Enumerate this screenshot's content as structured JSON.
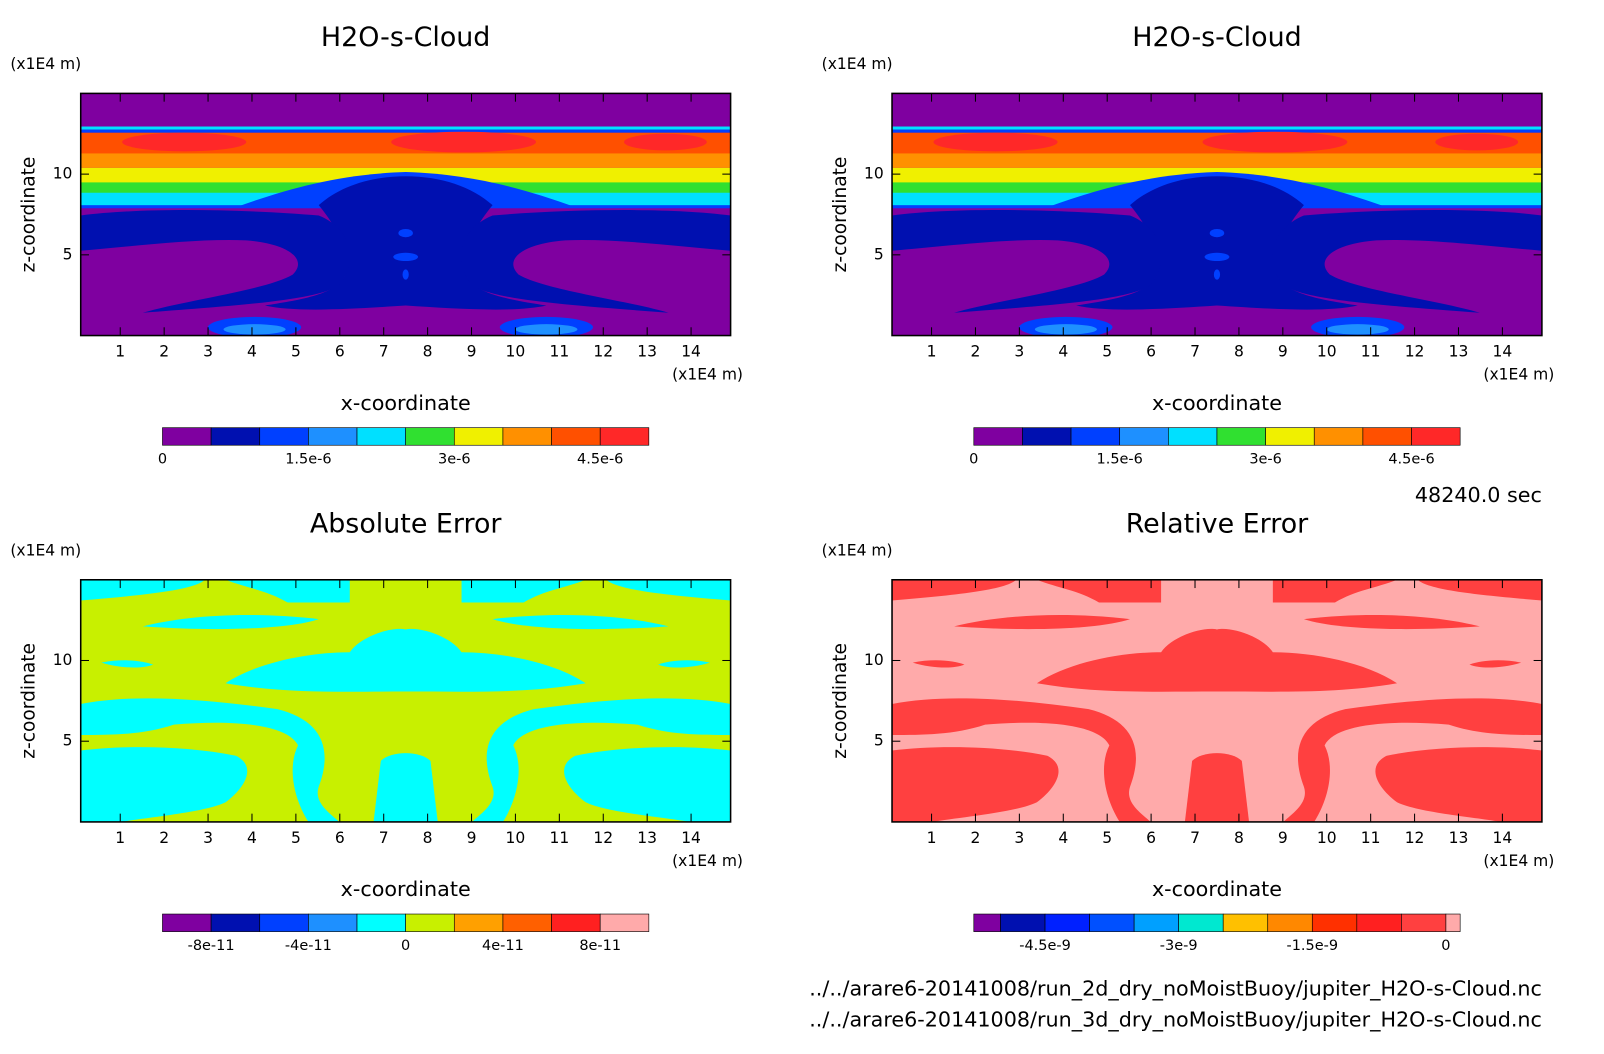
{
  "chart_data": [
    {
      "type": "contour",
      "title": "H2O-s-Cloud",
      "xlabel": "x-coordinate",
      "ylabel": "z-coordinate",
      "xunit": "(x1E4 m)",
      "yunit": "(x1E4 m)",
      "xlim": [
        0.1,
        14.9
      ],
      "ylim": [
        0,
        15
      ],
      "xticks": [
        1,
        2,
        3,
        4,
        5,
        6,
        7,
        8,
        9,
        10,
        11,
        12,
        13,
        14
      ],
      "yticks": [
        5,
        10
      ],
      "colorbar": {
        "bounds": [
          0,
          5e-07,
          1e-06,
          1.5e-06,
          2e-06,
          2.5e-06,
          3e-06,
          3.5e-06,
          4e-06,
          4.5e-06,
          5e-06
        ],
        "colors": [
          "#7f00a0",
          "#0010b0",
          "#0040ff",
          "#1e90ff",
          "#00e0ff",
          "#30e030",
          "#f0f000",
          "#ff9000",
          "#ff5000",
          "#ff2828"
        ],
        "ticks": [
          0,
          {
            "value": 1.5e-06,
            "label": "1.5e-6"
          },
          {
            "value": 3e-06,
            "label": "3e-6"
          },
          {
            "value": 4.5e-06,
            "label": "4.5e-6"
          }
        ]
      }
    },
    {
      "type": "contour",
      "title": "H2O-s-Cloud",
      "xlabel": "x-coordinate",
      "ylabel": "z-coordinate",
      "xunit": "(x1E4 m)",
      "yunit": "(x1E4 m)",
      "xlim": [
        0.1,
        14.9
      ],
      "ylim": [
        0,
        15
      ],
      "xticks": [
        1,
        2,
        3,
        4,
        5,
        6,
        7,
        8,
        9,
        10,
        11,
        12,
        13,
        14
      ],
      "yticks": [
        5,
        10
      ],
      "colorbar": {
        "bounds": [
          0,
          5e-07,
          1e-06,
          1.5e-06,
          2e-06,
          2.5e-06,
          3e-06,
          3.5e-06,
          4e-06,
          4.5e-06,
          5e-06
        ],
        "colors": [
          "#7f00a0",
          "#0010b0",
          "#0040ff",
          "#1e90ff",
          "#00e0ff",
          "#30e030",
          "#f0f000",
          "#ff9000",
          "#ff5000",
          "#ff2828"
        ],
        "ticks": [
          0,
          {
            "value": 1.5e-06,
            "label": "1.5e-6"
          },
          {
            "value": 3e-06,
            "label": "3e-6"
          },
          {
            "value": 4.5e-06,
            "label": "4.5e-6"
          }
        ]
      }
    },
    {
      "type": "contour",
      "title": "Absolute Error",
      "xlabel": "x-coordinate",
      "ylabel": "z-coordinate",
      "xunit": "(x1E4 m)",
      "yunit": "(x1E4 m)",
      "xlim": [
        0.1,
        14.9
      ],
      "ylim": [
        0,
        15
      ],
      "xticks": [
        1,
        2,
        3,
        4,
        5,
        6,
        7,
        8,
        9,
        10,
        11,
        12,
        13,
        14
      ],
      "yticks": [
        5,
        10
      ],
      "colorbar": {
        "bounds": [
          -1e-10,
          -8e-11,
          -6e-11,
          -4e-11,
          -2e-11,
          0,
          2e-11,
          4e-11,
          6e-11,
          8e-11,
          1e-10
        ],
        "colors": [
          "#7f00a0",
          "#0010b0",
          "#0040ff",
          "#1e90ff",
          "#00ffff",
          "#c8f000",
          "#ffa000",
          "#ff6000",
          "#ff2020",
          "#ffaaaa"
        ],
        "ticks": [
          {
            "value": -8e-11,
            "label": "-8e-11"
          },
          {
            "value": -4e-11,
            "label": "-4e-11"
          },
          0,
          {
            "value": 4e-11,
            "label": "4e-11"
          },
          {
            "value": 8e-11,
            "label": "8e-11"
          }
        ]
      }
    },
    {
      "type": "contour",
      "title": "Relative Error",
      "xlabel": "x-coordinate",
      "ylabel": "z-coordinate",
      "xunit": "(x1E4 m)",
      "yunit": "(x1E4 m)",
      "xlim": [
        0.1,
        14.9
      ],
      "ylim": [
        0,
        15
      ],
      "xticks": [
        1,
        2,
        3,
        4,
        5,
        6,
        7,
        8,
        9,
        10,
        11,
        12,
        13,
        14
      ],
      "yticks": [
        5,
        10
      ],
      "colorbar": {
        "bounds": [
          -5.3e-09,
          -5e-09,
          -4.5e-09,
          -4e-09,
          -3.5e-09,
          -3e-09,
          -2.5e-09,
          -2e-09,
          -1.5e-09,
          -1e-09,
          -5e-10,
          0,
          1.6e-10
        ],
        "colors": [
          "#7f00a0",
          "#0010b0",
          "#0020ff",
          "#0050ff",
          "#00a0ff",
          "#00e8d0",
          "#ffc000",
          "#ff8800",
          "#ff3000",
          "#ff2020",
          "#ff4040",
          "#ffaaaa"
        ],
        "ticks": [
          {
            "value": -4.5e-09,
            "label": "-4.5e-9"
          },
          {
            "value": -3e-09,
            "label": "-3e-9"
          },
          {
            "value": -1.5e-09,
            "label": "-1.5e-9"
          },
          0
        ]
      }
    }
  ],
  "time": "48240.0 sec",
  "files": [
    "../../arare6-20141008/run_2d_dry_noMoistBuoy/jupiter_H2O-s-Cloud.nc",
    "../../arare6-20141008/run_3d_dry_noMoistBuoy/jupiter_H2O-s-Cloud.nc"
  ]
}
